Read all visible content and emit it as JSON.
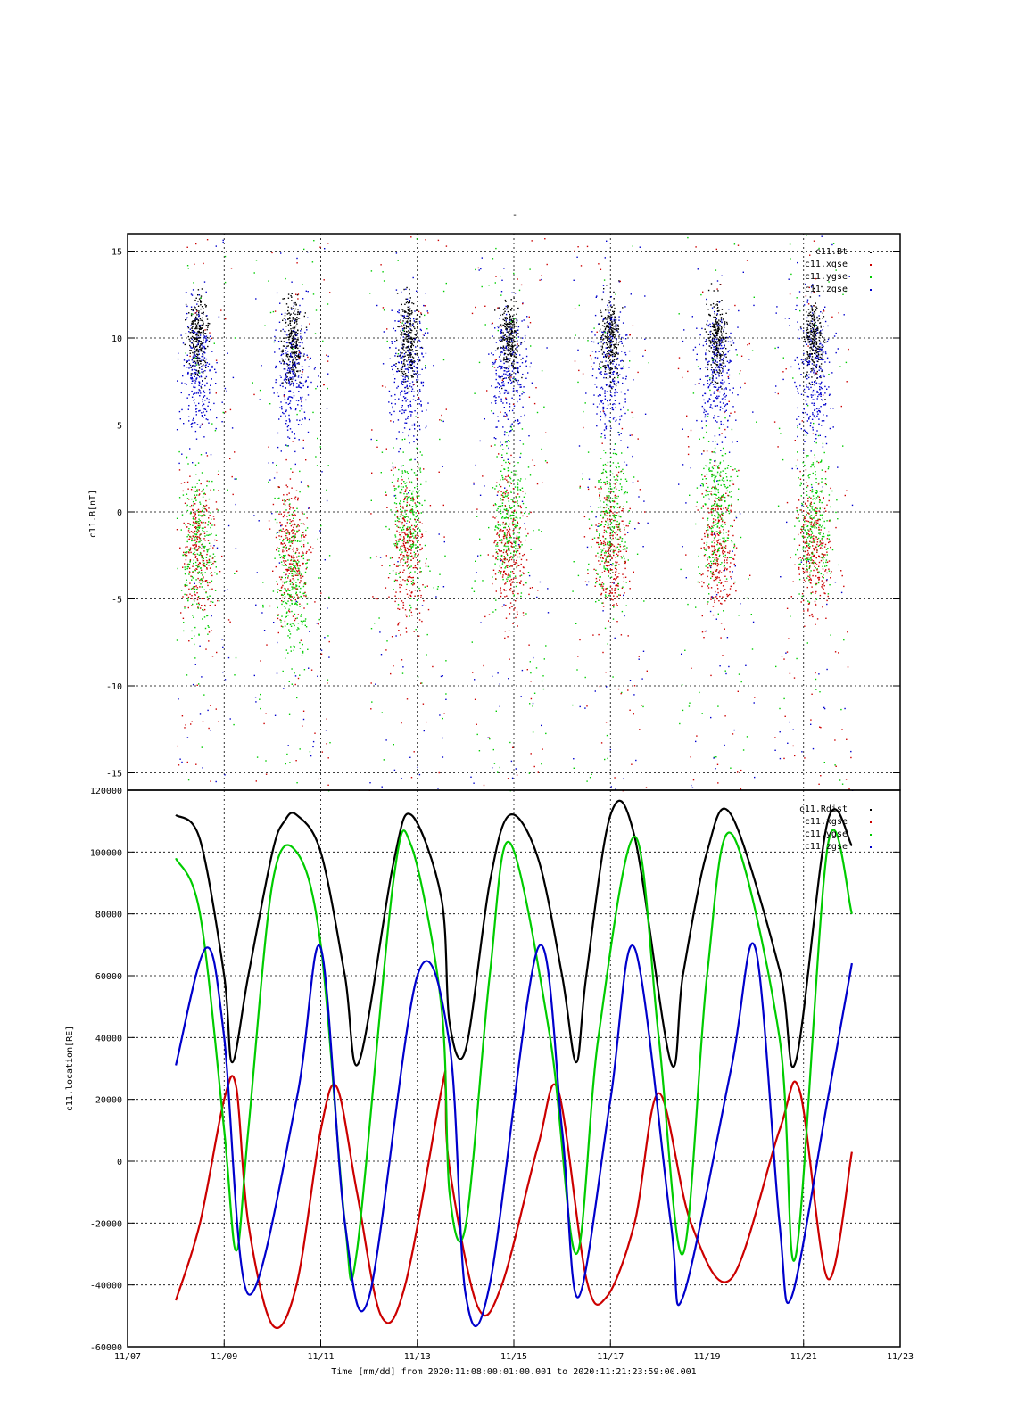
{
  "figure": {
    "title": "-",
    "colors": {
      "black": "#000000",
      "red": "#cc0000",
      "green": "#00cc00",
      "blue": "#0000cc"
    }
  },
  "chart_data": [
    {
      "type": "scatter",
      "ylabel": "c11.B[nT]",
      "ylim": [
        -16,
        16
      ],
      "yticks": [
        -15,
        -10,
        -5,
        0,
        5,
        10,
        15
      ],
      "xlim": [
        "2020-11-07",
        "2020-11-23"
      ],
      "grid": true,
      "legend_position": "top-right",
      "series": [
        {
          "name": "c11.Bt",
          "color": "#000000"
        },
        {
          "name": "c11.xgse",
          "color": "#cc0000"
        },
        {
          "name": "c11.ygse",
          "color": "#00cc00"
        },
        {
          "name": "c11.zgse",
          "color": "#0000cc"
        }
      ],
      "note_points": "Dense scatter of magnetic-field samples; Bt near 5-16 nT close to perigee passes (11/08, 11/10, 11/12, 11/14, 11/17, 11/19), components scatter across -16..16 nT."
    },
    {
      "type": "line",
      "ylabel": "c11.location[RE]",
      "ylim": [
        -60000,
        120000
      ],
      "yticks": [
        -60000,
        -40000,
        -20000,
        0,
        20000,
        40000,
        60000,
        80000,
        100000,
        120000
      ],
      "xlim": [
        "2020-11-07",
        "2020-11-23"
      ],
      "xticks": [
        "11/07",
        "11/09",
        "11/11",
        "11/13",
        "11/15",
        "11/17",
        "11/19",
        "11/21",
        "11/23"
      ],
      "xlabel": "Time [mm/dd]  from 2020:11:08:00:01:00.001  to  2020:11:21:23:59:00.001",
      "grid": true,
      "legend_position": "top-right",
      "series": [
        {
          "name": "c11.Rdist",
          "color": "#000000",
          "x": [
            "11/08 00:00",
            "11/08 12:00",
            "11/09 00:00",
            "11/09 04:00",
            "11/09 12:00",
            "11/10 00:00",
            "11/10 06:00",
            "11/10 12:00",
            "11/11 00:00",
            "11/11 12:00",
            "11/11 19:00",
            "11/12 12:00",
            "11/12 21:00",
            "11/13 12:00",
            "11/13 16:00",
            "11/14 00:00",
            "11/14 12:00",
            "11/14 22:00",
            "11/15 12:00",
            "11/16 00:00",
            "11/16 07:00",
            "11/16 12:00",
            "11/17 00:00",
            "11/17 12:00",
            "11/18 06:00",
            "11/18 12:00",
            "11/19 00:00",
            "11/19 12:00",
            "11/20 12:00",
            "11/20 20:00",
            "11/21 12:00",
            "11/22 00:00"
          ],
          "y": [
            112000,
            104000,
            60000,
            32000,
            60000,
            100000,
            110000,
            112000,
            100000,
            60000,
            32000,
            96000,
            112000,
            85000,
            45000,
            36000,
            90000,
            112000,
            98000,
            60000,
            32000,
            60000,
            112000,
            105000,
            32000,
            60000,
            100000,
            112000,
            62000,
            32000,
            110000,
            102000
          ]
        },
        {
          "name": "c11.xgse",
          "color": "#cc0000",
          "x": [
            "11/08 00:00",
            "11/08 12:00",
            "11/09 00:00",
            "11/09 06:00",
            "11/09 12:00",
            "11/10 00:00",
            "11/10 12:00",
            "11/11 00:00",
            "11/11 08:00",
            "11/11 18:00",
            "11/12 06:00",
            "11/12 18:00",
            "11/13 12:00",
            "11/13 14:00",
            "11/13 16:00",
            "11/14 06:00",
            "11/14 18:00",
            "11/15 12:00",
            "11/15 22:00",
            "11/16 12:00",
            "11/16 22:00",
            "11/17 12:00",
            "11/18 00:00",
            "11/18 16:00",
            "11/19 12:00",
            "11/20 12:00",
            "11/20 22:00",
            "11/21 12:00",
            "11/22 00:00"
          ],
          "y": [
            -45000,
            -20000,
            20000,
            24000,
            -20000,
            -53000,
            -40000,
            10000,
            24000,
            -10000,
            -50000,
            -40000,
            23000,
            24000,
            -2000,
            -47000,
            -40000,
            5000,
            23000,
            -38000,
            -44000,
            -20000,
            22000,
            -20000,
            -38000,
            10000,
            23000,
            -38000,
            3000
          ]
        },
        {
          "name": "c11.ygse",
          "color": "#00cc00",
          "x": [
            "11/08 00:00",
            "11/08 12:00",
            "11/09 00:00",
            "11/09 06:00",
            "11/09 12:00",
            "11/10 00:00",
            "11/10 12:00",
            "11/11 00:00",
            "11/11 12:00",
            "11/11 18:00",
            "11/12 12:00",
            "11/12 21:00",
            "11/13 12:00",
            "11/13 16:00",
            "11/14 00:00",
            "11/14 12:00",
            "11/14 22:00",
            "11/15 18:00",
            "11/16 07:00",
            "11/16 18:00",
            "11/17 12:00",
            "11/18 00:00",
            "11/18 12:00",
            "11/19 00:00",
            "11/19 12:00",
            "11/20 12:00",
            "11/20 20:00",
            "11/21 12:00",
            "11/22 00:00"
          ],
          "y": [
            98000,
            80000,
            10000,
            -29000,
            10000,
            90000,
            100000,
            70000,
            -20000,
            -29000,
            90000,
            102000,
            50000,
            -10000,
            -21000,
            60000,
            103000,
            40000,
            -30000,
            40000,
            105000,
            40000,
            -30000,
            60000,
            106000,
            40000,
            -31000,
            102000,
            80000
          ]
        },
        {
          "name": "c11.zgse",
          "color": "#0000cc",
          "x": [
            "11/08 00:00",
            "11/08 15:00",
            "11/09 00:00",
            "11/09 12:00",
            "11/10 12:00",
            "11/11 00:00",
            "11/11 12:00",
            "11/12 00:00",
            "11/13 00:00",
            "11/13 16:00",
            "11/14 00:00",
            "11/14 12:00",
            "11/15 12:00",
            "11/16 00:00",
            "11/16 08:00",
            "11/17 00:00",
            "11/17 12:00",
            "11/18 06:00",
            "11/18 12:00",
            "11/19 12:00",
            "11/20 00:00",
            "11/20 12:00",
            "11/20 18:00",
            "11/21 12:00",
            "11/22 00:00"
          ],
          "y": [
            31000,
            69000,
            40000,
            -43000,
            20000,
            69000,
            -20000,
            -44000,
            60000,
            38000,
            -43000,
            -40000,
            69000,
            10000,
            -44000,
            20000,
            69000,
            -20000,
            -44000,
            30000,
            69000,
            -20000,
            -44000,
            20000,
            64000
          ]
        }
      ]
    }
  ]
}
